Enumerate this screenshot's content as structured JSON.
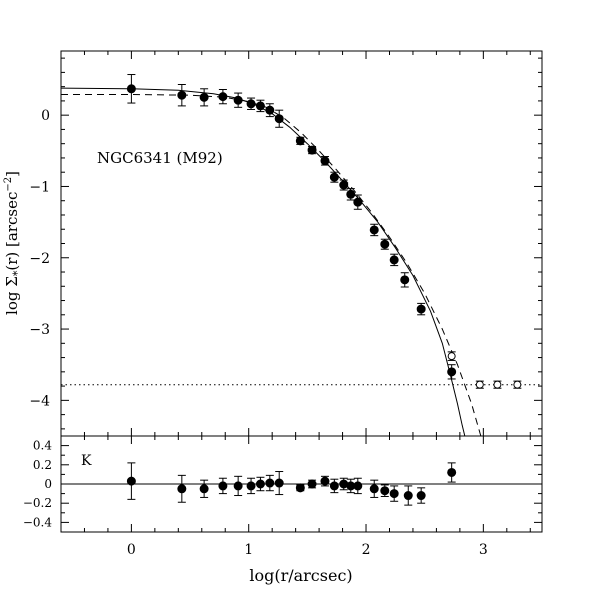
{
  "chart_data": [
    {
      "type": "scatter",
      "annotation": "NGC6341 (M92)",
      "xlabel": "",
      "ylabel": "log Σ*(r) [arcsec⁻²]",
      "ylabel_parts": {
        "prefix": "log Σ",
        "subscript": "*",
        "middle": "(r) [arcsec",
        "superscript": "−2",
        "suffix": "]"
      },
      "xlim": [
        -0.6,
        3.5
      ],
      "ylim": [
        -4.5,
        0.9
      ],
      "yticks": [
        0,
        -1,
        -2,
        -3,
        -4
      ],
      "ytick_labels": [
        "0",
        "−1",
        "−2",
        "−3",
        "−4"
      ],
      "series": [
        {
          "style": "filled-circle",
          "x": [
            0.0,
            0.43,
            0.62,
            0.78,
            0.91,
            1.02,
            1.1,
            1.18,
            1.26,
            1.44,
            1.54,
            1.65,
            1.73,
            1.81,
            1.87,
            1.93,
            2.07,
            2.16,
            2.24,
            2.33,
            2.47,
            2.73
          ],
          "y": [
            0.37,
            0.28,
            0.25,
            0.26,
            0.21,
            0.16,
            0.13,
            0.07,
            -0.05,
            -0.36,
            -0.49,
            -0.64,
            -0.87,
            -0.98,
            -1.11,
            -1.22,
            -1.61,
            -1.81,
            -2.03,
            -2.31,
            -2.72,
            -3.6
          ],
          "err": [
            0.2,
            0.15,
            0.12,
            0.1,
            0.1,
            0.08,
            0.08,
            0.09,
            0.12,
            0.05,
            0.05,
            0.06,
            0.07,
            0.07,
            0.08,
            0.1,
            0.08,
            0.07,
            0.08,
            0.1,
            0.08,
            0.1
          ]
        },
        {
          "style": "open-circle",
          "x": [
            2.73,
            2.97,
            3.12,
            3.29
          ],
          "y": [
            -3.38,
            -3.78,
            -3.78,
            -3.78
          ],
          "err": [
            0.06,
            0.05,
            0.05,
            0.05
          ]
        }
      ],
      "models": [
        {
          "style": "solid",
          "x": [
            -0.6,
            0.0,
            0.4,
            0.7,
            0.9,
            1.05,
            1.2,
            1.35,
            1.5,
            1.65,
            1.8,
            1.95,
            2.1,
            2.25,
            2.4,
            2.55,
            2.65,
            2.72,
            2.78,
            2.82,
            2.86
          ],
          "y": [
            0.38,
            0.37,
            0.35,
            0.3,
            0.24,
            0.15,
            0.02,
            -0.17,
            -0.4,
            -0.65,
            -0.92,
            -1.2,
            -1.5,
            -1.86,
            -2.25,
            -2.75,
            -3.2,
            -3.65,
            -4.05,
            -4.35,
            -4.62
          ]
        },
        {
          "style": "dashed",
          "x": [
            -0.6,
            0.0,
            0.5,
            0.8,
            1.0,
            1.15,
            1.3,
            1.45,
            1.6,
            1.75,
            1.9,
            2.05,
            2.2,
            2.35,
            2.5,
            2.65,
            2.78,
            2.9,
            3.0
          ],
          "y": [
            0.29,
            0.29,
            0.28,
            0.25,
            0.19,
            0.11,
            -0.04,
            -0.25,
            -0.5,
            -0.77,
            -1.06,
            -1.37,
            -1.71,
            -2.08,
            -2.5,
            -3.0,
            -3.5,
            -4.05,
            -4.62
          ]
        },
        {
          "style": "dotted",
          "x": [
            -0.6,
            3.5
          ],
          "y": [
            -3.78,
            -3.78
          ]
        }
      ]
    },
    {
      "type": "scatter",
      "annotation": "K",
      "xlabel": "log(r/arcsec)",
      "ylabel": "",
      "xlim": [
        -0.6,
        3.5
      ],
      "ylim": [
        -0.5,
        0.5
      ],
      "xticks": [
        0,
        1,
        2,
        3
      ],
      "xtick_labels": [
        "0",
        "1",
        "2",
        "3"
      ],
      "yticks": [
        0.4,
        0.2,
        0,
        -0.2,
        -0.4
      ],
      "ytick_labels": [
        "0.4",
        "0.2",
        "0",
        "−0.2",
        "−0.4"
      ],
      "reference_line": 0,
      "series": [
        {
          "style": "filled-circle",
          "x": [
            0.0,
            0.43,
            0.62,
            0.78,
            0.91,
            1.02,
            1.1,
            1.18,
            1.26,
            1.44,
            1.54,
            1.65,
            1.73,
            1.81,
            1.87,
            1.93,
            2.07,
            2.16,
            2.24,
            2.36,
            2.47,
            2.73
          ],
          "y": [
            0.03,
            -0.05,
            -0.05,
            -0.02,
            -0.02,
            -0.02,
            0.0,
            0.01,
            0.01,
            -0.04,
            0.0,
            0.03,
            -0.02,
            0.0,
            -0.02,
            -0.02,
            -0.05,
            -0.07,
            -0.1,
            -0.12,
            -0.12,
            0.12
          ],
          "err": [
            0.19,
            0.14,
            0.09,
            0.08,
            0.1,
            0.08,
            0.07,
            0.08,
            0.12,
            0.03,
            0.04,
            0.05,
            0.07,
            0.06,
            0.07,
            0.08,
            0.09,
            0.06,
            0.08,
            0.1,
            0.08,
            0.1
          ]
        }
      ]
    }
  ]
}
